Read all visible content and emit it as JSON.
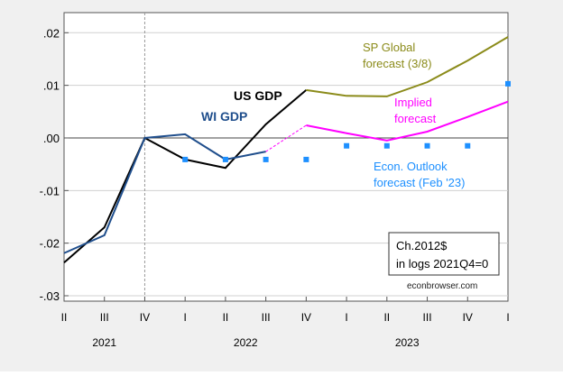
{
  "chart_data": {
    "type": "line",
    "x": [
      "II",
      "III",
      "IV",
      "I",
      "II",
      "III",
      "IV",
      "I",
      "II",
      "III",
      "IV",
      "I"
    ],
    "x_years": [
      {
        "label": "2021",
        "quarters": [
          "II",
          "III",
          "IV"
        ]
      },
      {
        "label": "2022",
        "quarters": [
          "I",
          "II",
          "III",
          "IV"
        ]
      },
      {
        "label": "2023",
        "quarters": [
          "I",
          "II",
          "III",
          "IV"
        ]
      }
    ],
    "ylim": [
      -0.03,
      0.02
    ],
    "yticks": [
      ".02",
      ".01",
      ".00",
      "-.01",
      "-.02",
      "-.03"
    ],
    "ytick_values": [
      0.02,
      0.01,
      0,
      -0.01,
      -0.02,
      -0.03
    ],
    "grid": true,
    "zero_line": true,
    "vline_at_index": 2,
    "series": [
      {
        "name": "US GDP",
        "color": "#000000",
        "style": "solid",
        "values": [
          -0.0237,
          -0.017,
          0,
          -0.0041,
          -0.0057,
          0.0026,
          0.0091,
          null,
          null,
          null,
          null,
          null
        ]
      },
      {
        "name": "WI GDP",
        "color": "#1f4e8c",
        "style": "solid",
        "values": [
          -0.0219,
          -0.0185,
          0,
          0.0007,
          -0.0041,
          -0.0026,
          null,
          null,
          null,
          null,
          null,
          null
        ]
      },
      {
        "name": "SP Global forecast (3/8)",
        "color": "#8b8b1a",
        "style": "solid",
        "values": [
          null,
          null,
          null,
          null,
          null,
          null,
          0.0091,
          0.008,
          0.0079,
          0.0106,
          0.0147,
          0.0192
        ]
      },
      {
        "name": "Implied forecast",
        "color": "#ff00ff",
        "style": "solid",
        "values": [
          null,
          null,
          null,
          null,
          null,
          null,
          0.0024,
          0.0009,
          -0.0005,
          0.0012,
          0.004,
          0.0069
        ]
      },
      {
        "name": "Implied forecast (bridge)",
        "color": "#ff00ff",
        "style": "dashed",
        "values": [
          null,
          null,
          null,
          null,
          null,
          -0.0026,
          0.0024,
          null,
          null,
          null,
          null,
          null
        ]
      },
      {
        "name": "Econ. Outlook forecast (Feb '23)",
        "color": "#1e90ff",
        "style": "markers",
        "values": [
          null,
          null,
          null,
          -0.0041,
          -0.0041,
          -0.0041,
          -0.0041,
          -0.0015,
          -0.0015,
          -0.0015,
          -0.0015,
          0.0103
        ]
      }
    ],
    "annotations": {
      "wi": "WI GDP",
      "us": "US GDP",
      "sp1": "SP Global",
      "sp2": "forecast (3/8)",
      "imp1": "Implied",
      "imp2": "forecast",
      "eo1": "Econ. Outlook",
      "eo2": "forecast (Feb '23)",
      "box1": "Ch.2012$",
      "box2": "in logs 2021Q4=0",
      "source": "econbrowser.com"
    }
  }
}
